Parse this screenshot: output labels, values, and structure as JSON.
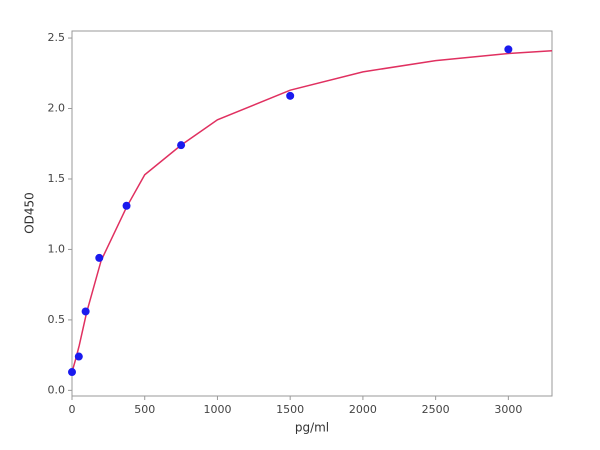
{
  "chart_data": {
    "type": "scatter",
    "x_label": "pg/ml",
    "y_label": "OD450",
    "x": [
      0,
      46.875,
      93.75,
      187.5,
      375,
      750,
      1500,
      3000
    ],
    "values": [
      0.13,
      0.24,
      0.56,
      0.94,
      1.31,
      1.74,
      2.09,
      2.42
    ],
    "color": "#1a1aee",
    "fit": {
      "color": "#e03060",
      "x": [
        0,
        25,
        50,
        100,
        200,
        375,
        500,
        750,
        1000,
        1500,
        2000,
        2500,
        3000,
        3300
      ],
      "values": [
        0.13,
        0.22,
        0.32,
        0.55,
        0.92,
        1.3,
        1.53,
        1.74,
        1.92,
        2.13,
        2.26,
        2.34,
        2.39,
        2.41
      ]
    },
    "xlim": [
      0,
      3300
    ],
    "ylim": [
      -0.04,
      2.55
    ],
    "xticks": [
      0,
      500,
      1000,
      1500,
      2000,
      2500,
      3000
    ],
    "yticks": [
      {
        "value": 0,
        "label": "0.0"
      },
      0.5,
      {
        "value": 1,
        "label": "1.0"
      },
      1.5,
      {
        "value": 2,
        "label": "2.0"
      },
      2.5
    ]
  }
}
